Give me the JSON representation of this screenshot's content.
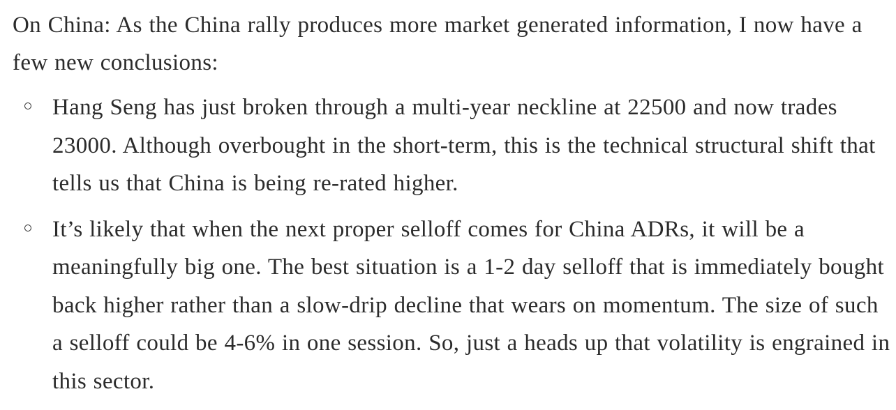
{
  "intro": "On China: As the China rally produces more market generated information, I now have a few new conclusions:",
  "bullets": [
    {
      "text": "Hang Seng has just broken through a multi-year neckline at 22500 and now trades 23000. Although overbought in the short-term, this is the technical structural shift that tells us that China is being re-rated higher."
    },
    {
      "text": "It’s likely that when the next proper selloff comes for China ADRs, it will be a meaningfully big one. The best situation is a 1-2 day selloff that is immediately bought back higher rather than a slow-drip decline that wears on momentum. The size of such a selloff could be 4-6% in one session. So, just a heads up that volatility is engrained in this sector."
    }
  ]
}
